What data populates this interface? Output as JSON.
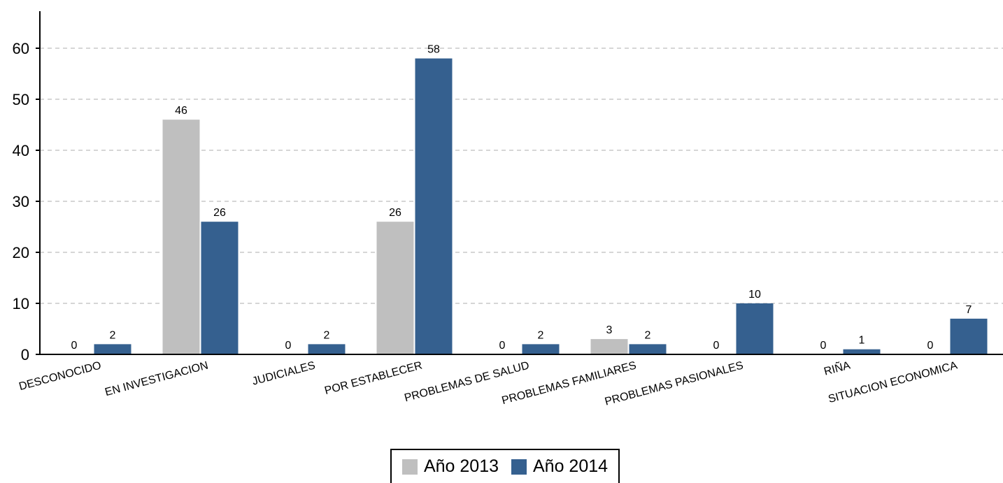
{
  "chart_data": {
    "type": "bar",
    "categories": [
      "DESCONOCIDO",
      "EN INVESTIGACION",
      "JUDICIALES",
      "POR ESTABLECER",
      "PROBLEMAS DE SALUD",
      "PROBLEMAS FAMILIARES",
      "PROBLEMAS PASIONALES",
      "RIÑA",
      "SITUACION ECONOMICA"
    ],
    "series": [
      {
        "name": "Año 2013",
        "color": "#bfbfbf",
        "values": [
          0,
          46,
          0,
          26,
          0,
          3,
          0,
          0,
          0
        ]
      },
      {
        "name": "Año 2014",
        "color": "#35608f",
        "values": [
          2,
          26,
          2,
          58,
          2,
          2,
          10,
          1,
          7
        ]
      }
    ],
    "ylim": [
      0,
      60
    ],
    "yticks": [
      0,
      10,
      20,
      30,
      40,
      50,
      60
    ],
    "grid": true,
    "legend_position": "bottom-center",
    "xlabel": "",
    "ylabel": "",
    "title": ""
  }
}
